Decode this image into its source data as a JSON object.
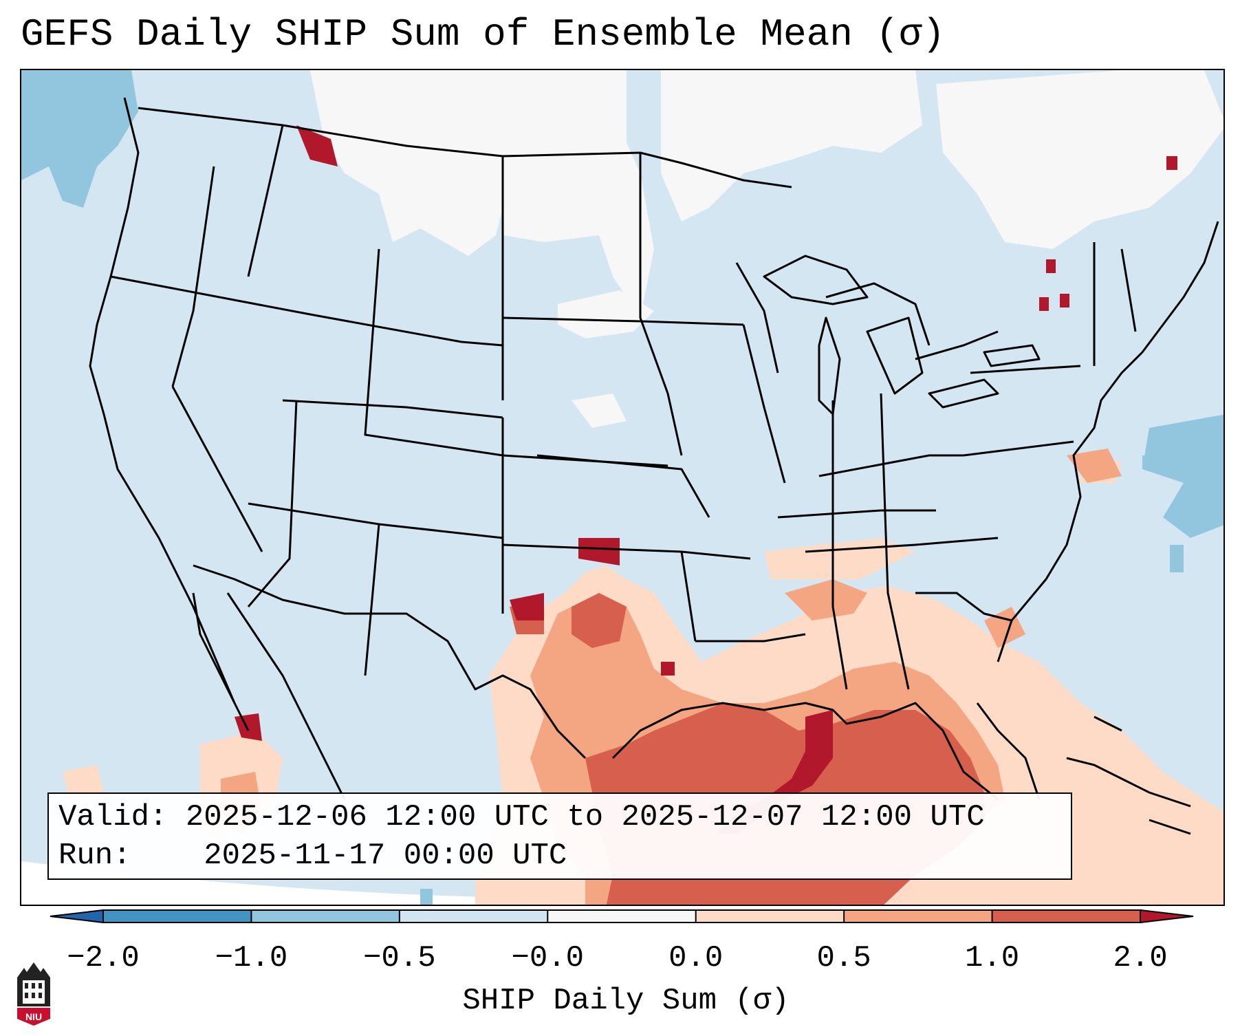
{
  "title": "GEFS Daily SHIP Sum of Ensemble Mean (σ)",
  "info": {
    "valid_label": "Valid:",
    "valid_value": "2025-12-06 12:00 UTC to 2025-12-07 12:00 UTC",
    "run_label": "Run:",
    "run_value": "2025-11-17 00:00 UTC"
  },
  "colorbar": {
    "label": "SHIP Daily Sum (σ)",
    "ticks": [
      "−2.0",
      "−1.0",
      "−0.5",
      "−0.0",
      "0.0",
      "0.5",
      "1.0",
      "2.0"
    ],
    "bins": [
      {
        "range": "< -2.0",
        "color": "#2166ac"
      },
      {
        "range": "-2.0 to -1.0",
        "color": "#4393c3"
      },
      {
        "range": "-1.0 to -0.5",
        "color": "#92c5de"
      },
      {
        "range": "-0.5 to -0.0",
        "color": "#d1e5f0"
      },
      {
        "range": "-0.0 to 0.0",
        "color": "#f7f7f7"
      },
      {
        "range": "0.0 to 0.5",
        "color": "#fddbc7"
      },
      {
        "range": "0.5 to 1.0",
        "color": "#f4a582"
      },
      {
        "range": "1.0 to 2.0",
        "color": "#d6604d"
      },
      {
        "range": "> 2.0",
        "color": "#b2182b"
      }
    ]
  },
  "map": {
    "region": "Continental United States",
    "field_regions": [
      {
        "area": "Southern Plains / Texas / Gulf Coast",
        "category": "0.0 to 0.5"
      },
      {
        "area": "Central Texas / Louisiana",
        "category": "0.5 to 1.0"
      },
      {
        "area": "Gulf of Mexico",
        "category": "1.0 to 2.0"
      },
      {
        "area": "Northern Louisiana coast / Texas Panhandle",
        "category": "> 2.0"
      },
      {
        "area": "Northern Plains / Canada",
        "category": "-0.0 to 0.0"
      },
      {
        "area": "Western and Northern US",
        "category": "-0.5 to -0.0"
      },
      {
        "area": "Northeast Pacific / Atlantic",
        "category": "-1.0 to -0.5"
      }
    ]
  },
  "logo": {
    "text": "NIU",
    "icon": "niu-logo-icon"
  }
}
